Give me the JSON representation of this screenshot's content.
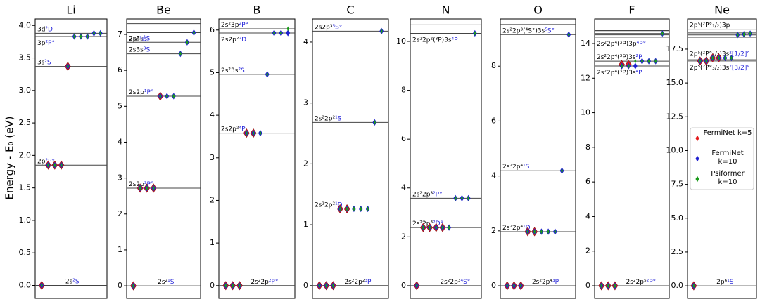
{
  "chart_data": [
    {
      "type": "scatter",
      "title": "Li",
      "ylabel": "Energy - E₀ (eV)",
      "ylim": [
        -0.2,
        4.1
      ],
      "yticks": [
        {
          "value": 0,
          "label": "0.0"
        },
        0.5,
        {
          "value": 1,
          "label": "1.0"
        },
        1.5,
        {
          "value": 2,
          "label": "2.0"
        },
        2.5,
        {
          "value": 3,
          "label": "3.0"
        },
        3.5,
        {
          "value": 4,
          "label": "4.0"
        }
      ],
      "xlim": [
        0,
        11
      ],
      "levels": [
        {
          "value": 0,
          "config": "2s",
          "term": "²S"
        },
        {
          "value": 1.85,
          "config": "2p",
          "term": "²P°"
        },
        {
          "value": 3.37,
          "config": "3s",
          "term": "²S"
        },
        {
          "value": 3.83,
          "config": "3p",
          "term": "²P°"
        },
        {
          "value": 3.88,
          "config": "3d",
          "term": "²D"
        }
      ],
      "x": [
        1,
        2,
        3,
        4,
        5,
        6,
        7,
        8,
        9,
        10
      ],
      "series": [
        {
          "color": "#e41a1c",
          "values": [
            0,
            1.85,
            1.85,
            1.85,
            3.37,
            null,
            null,
            null,
            null,
            null
          ]
        },
        {
          "color": "#1f1fd0",
          "values": [
            0,
            1.85,
            1.85,
            1.85,
            3.37,
            3.83,
            3.83,
            3.83,
            3.88,
            3.88
          ]
        },
        {
          "color": "#1a9a1a",
          "values": [
            0,
            1.85,
            1.85,
            1.85,
            3.37,
            3.83,
            3.83,
            3.83,
            3.88,
            3.88
          ]
        }
      ]
    },
    {
      "type": "scatter",
      "title": "Be",
      "ylim": [
        -0.35,
        7.43
      ],
      "yticks": [
        0,
        1,
        2,
        3,
        4,
        5,
        6,
        7
      ],
      "xlim": [
        0,
        11
      ],
      "levels": [
        {
          "value": 0,
          "config": "2s²",
          "term": "¹S"
        },
        {
          "value": 2.72,
          "config": "2s2p",
          "term": "³P°"
        },
        {
          "value": 5.28,
          "config": "2s2p",
          "term": "¹P°"
        },
        {
          "value": 6.46,
          "config": "2s3s",
          "term": "³S"
        },
        {
          "value": 6.78,
          "config": "2s3s",
          "term": "¹S"
        },
        {
          "value": 7.05,
          "config": "2p²",
          "term": "¹D"
        },
        {
          "value": 7.3
        }
      ],
      "x": [
        1,
        2,
        3,
        4,
        5,
        6,
        7,
        8,
        9,
        10
      ],
      "series": [
        {
          "color": "#e41a1c",
          "values": [
            0,
            2.72,
            2.72,
            2.72,
            5.28,
            null,
            null,
            null,
            null,
            null
          ]
        },
        {
          "color": "#1f1fd0",
          "values": [
            0,
            2.72,
            2.72,
            2.72,
            5.28,
            5.28,
            5.28,
            6.46,
            6.78,
            7.05
          ]
        },
        {
          "color": "#1a9a1a",
          "values": [
            0,
            2.72,
            2.72,
            2.72,
            5.28,
            5.28,
            5.28,
            6.46,
            6.78,
            7.05
          ]
        }
      ]
    },
    {
      "type": "scatter",
      "title": "B",
      "ylim": [
        -0.3,
        6.26
      ],
      "yticks": [
        0,
        1,
        2,
        3,
        4,
        5,
        6
      ],
      "xlim": [
        0,
        11
      ],
      "levels": [
        {
          "value": 0,
          "config": "2s²2p",
          "term": "²P°"
        },
        {
          "value": 3.58,
          "config": "2s2p²",
          "term": "⁴P"
        },
        {
          "value": 4.96,
          "config": "2s²3s",
          "term": "²S"
        },
        {
          "value": 5.93,
          "config": "2s2p²",
          "term": "²D"
        },
        {
          "value": 6.03,
          "config": "2s²3p",
          "term": "²P°"
        }
      ],
      "x": [
        1,
        2,
        3,
        4,
        5,
        6,
        7,
        8,
        9,
        10
      ],
      "series": [
        {
          "color": "#e41a1c",
          "values": [
            0,
            0,
            0,
            3.58,
            3.58,
            null,
            null,
            null,
            null,
            null
          ]
        },
        {
          "color": "#1f1fd0",
          "values": [
            0,
            0,
            0,
            3.58,
            3.58,
            3.58,
            4.96,
            5.93,
            5.93,
            5.93
          ]
        },
        {
          "color": "#1a9a1a",
          "values": [
            0,
            0,
            0,
            3.58,
            3.58,
            3.58,
            4.96,
            5.93,
            5.93,
            6.03
          ]
        }
      ]
    },
    {
      "type": "scatter",
      "title": "C",
      "ylim": [
        -0.21,
        4.38
      ],
      "yticks": [
        0,
        1,
        2,
        3,
        4
      ],
      "xlim": [
        0,
        11
      ],
      "levels": [
        {
          "value": 0,
          "config": "2s²2p²",
          "term": "³P"
        },
        {
          "value": 1.26,
          "config": "2s²2p²",
          "term": "¹D"
        },
        {
          "value": 2.68,
          "config": "2s²2p²",
          "term": "¹S"
        },
        {
          "value": 4.18,
          "config": "2s2p³",
          "term": "⁵S°"
        }
      ],
      "x": [
        1,
        2,
        3,
        4,
        5,
        6,
        7,
        8,
        9,
        10
      ],
      "series": [
        {
          "color": "#e41a1c",
          "values": [
            0,
            0,
            0,
            1.26,
            1.26,
            null,
            null,
            null,
            null,
            null
          ]
        },
        {
          "color": "#1f1fd0",
          "values": [
            0,
            0,
            0,
            1.26,
            1.26,
            1.26,
            1.26,
            1.26,
            2.68,
            4.18
          ]
        },
        {
          "color": "#1a9a1a",
          "values": [
            0,
            0,
            0,
            1.26,
            1.26,
            1.26,
            1.26,
            1.26,
            2.68,
            4.18
          ]
        }
      ]
    },
    {
      "type": "scatter",
      "title": "N",
      "ylim": [
        -0.52,
        10.92
      ],
      "yticks": [
        0,
        2,
        4,
        6,
        8,
        10
      ],
      "xlim": [
        0,
        11
      ],
      "levels": [
        {
          "value": 0,
          "config": "2s²2p³",
          "term": "⁴S°"
        },
        {
          "value": 2.38,
          "config": "2s²2p³",
          "term": "²D°"
        },
        {
          "value": 3.58,
          "config": "2s²2p³",
          "term": "²P°"
        },
        {
          "value": 10.33,
          "config": "2s²2p²(³P)3s",
          "term": "⁴P"
        },
        {
          "value": 10.68
        }
      ],
      "x": [
        1,
        2,
        3,
        4,
        5,
        6,
        7,
        8,
        9,
        10
      ],
      "series": [
        {
          "color": "#e41a1c",
          "values": [
            0,
            2.38,
            2.38,
            2.38,
            2.38,
            null,
            null,
            null,
            null,
            null
          ]
        },
        {
          "color": "#1f1fd0",
          "values": [
            0,
            2.38,
            2.38,
            2.38,
            2.38,
            2.38,
            3.58,
            3.58,
            3.58,
            10.33
          ]
        },
        {
          "color": "#1a9a1a",
          "values": [
            0,
            2.38,
            2.38,
            2.38,
            2.38,
            2.38,
            3.58,
            3.58,
            3.58,
            10.33
          ]
        }
      ]
    },
    {
      "type": "scatter",
      "title": "O",
      "ylim": [
        -0.46,
        9.72
      ],
      "yticks": [
        0,
        2,
        4,
        6,
        8
      ],
      "xlim": [
        0,
        11
      ],
      "levels": [
        {
          "value": 0,
          "config": "2s²2p⁴",
          "term": "³P"
        },
        {
          "value": 1.97,
          "config": "2s²2p⁴",
          "term": "¹D"
        },
        {
          "value": 4.19,
          "config": "2s²2p⁴",
          "term": "¹S"
        },
        {
          "value": 9.15,
          "config": "2s²2p³(⁴S°)3s",
          "term": "⁵S°"
        },
        {
          "value": 9.52
        }
      ],
      "x": [
        1,
        2,
        3,
        4,
        5,
        6,
        7,
        8,
        9,
        10
      ],
      "series": [
        {
          "color": "#e41a1c",
          "values": [
            0,
            0,
            0,
            1.97,
            1.97,
            null,
            null,
            null,
            null,
            null
          ]
        },
        {
          "color": "#1f1fd0",
          "values": [
            0,
            0,
            0,
            1.97,
            1.97,
            1.97,
            1.97,
            1.97,
            4.19,
            9.15
          ]
        },
        {
          "color": "#1a9a1a",
          "values": [
            0,
            0,
            0,
            1.97,
            1.97,
            1.97,
            1.97,
            1.97,
            4.19,
            9.15
          ]
        }
      ]
    },
    {
      "type": "scatter",
      "title": "F",
      "ylim": [
        -0.73,
        15.42
      ],
      "yticks": [
        0,
        2,
        4,
        6,
        8,
        10,
        12,
        14
      ],
      "xlim": [
        0,
        11
      ],
      "levels": [
        {
          "value": 0,
          "config": "2s²2p⁵",
          "term": "²P°"
        },
        {
          "value": 12.7,
          "config": "2s²2p⁴(³P)3s",
          "term": "⁴P"
        },
        {
          "value": 12.98,
          "config": "2s²2p⁴(³P)3s",
          "term": "²P"
        },
        {
          "value": 14.37,
          "config": "2s²2p⁴(³P)3p",
          "term": "⁴P°"
        },
        {
          "value": 14.5
        },
        {
          "value": 14.58
        },
        {
          "value": 14.68
        },
        {
          "value": 14.75
        }
      ],
      "x": [
        1,
        2,
        3,
        4,
        5,
        6,
        7,
        8,
        9,
        10
      ],
      "series": [
        {
          "color": "#e41a1c",
          "values": [
            0,
            0,
            0,
            12.78,
            12.78,
            null,
            null,
            null,
            null,
            null
          ]
        },
        {
          "color": "#1f1fd0",
          "values": [
            0,
            0,
            0,
            12.7,
            12.7,
            12.7,
            12.98,
            12.98,
            12.98,
            14.58
          ]
        },
        {
          "color": "#1a9a1a",
          "values": [
            0,
            0,
            0,
            12.7,
            12.7,
            12.98,
            12.98,
            12.98,
            12.98,
            14.58
          ]
        }
      ]
    },
    {
      "type": "scatter",
      "title": "Ne",
      "ylim": [
        -0.93,
        19.73
      ],
      "yticks": [
        {
          "value": 0,
          "label": "0.0"
        },
        2.5,
        {
          "value": 5,
          "label": "5.0"
        },
        7.5,
        {
          "value": 10,
          "label": "10.0"
        },
        12.5,
        {
          "value": 15,
          "label": "15.0"
        },
        17.5
      ],
      "xlim": [
        0,
        11
      ],
      "levels": [
        {
          "value": 0,
          "config": "2p⁶",
          "term": "¹S"
        },
        {
          "value": 16.62,
          "config": "2p⁵(²P°₃/₂)3s",
          "term": "²[3/2]°"
        },
        {
          "value": 16.71
        },
        {
          "value": 16.85,
          "config": "2p⁵(²P°₁/₂)3s",
          "term": "²[1/2]°"
        },
        {
          "value": 18.38
        },
        {
          "value": 18.55
        },
        {
          "value": 18.7
        },
        {
          "value": 18.97,
          "config": "2p⁵(²P°₁/₂)3p"
        }
      ],
      "x": [
        1,
        2,
        3,
        4,
        5,
        6,
        7,
        8,
        9,
        10
      ],
      "series": [
        {
          "name": "FermiNet k=5",
          "color": "#e41a1c",
          "values": [
            0,
            16.62,
            16.62,
            16.85,
            16.85,
            null,
            null,
            null,
            null,
            null
          ]
        },
        {
          "name": "FermiNet k=10",
          "color": "#1f1fd0",
          "values": [
            0,
            16.62,
            16.62,
            16.85,
            16.85,
            16.85,
            16.85,
            18.55,
            18.6,
            18.65
          ]
        },
        {
          "name": "Psiformer k=10",
          "color": "#1a9a1a",
          "values": [
            0,
            16.62,
            16.62,
            16.85,
            16.85,
            16.85,
            16.85,
            18.55,
            18.6,
            18.65
          ]
        }
      ]
    }
  ]
}
